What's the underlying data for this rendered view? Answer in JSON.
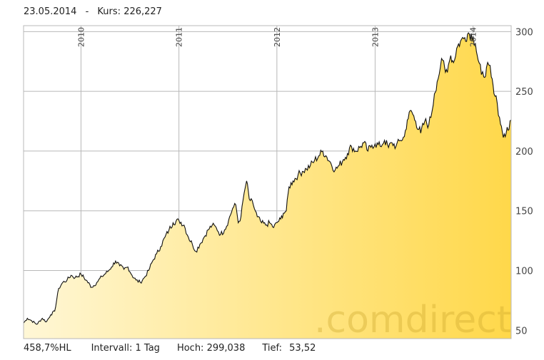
{
  "header": {
    "date": "23.05.2014",
    "separator": "-",
    "kurs_label": "Kurs:",
    "kurs_value": "226,227"
  },
  "footer": {
    "performance": "458,7%HL",
    "interval_label": "Intervall:",
    "interval_value": "1 Tag",
    "high_label": "Hoch:",
    "high_value": "299,038",
    "low_label": "Tief:",
    "low_value": "53,52"
  },
  "watermark": ".comdirect",
  "colors": {
    "fill_start": "#fff7d6",
    "fill_end": "#ffd84a",
    "line": "#111111",
    "grid": "#b8b8b8"
  },
  "chart_data": {
    "type": "area",
    "x_axis": "date",
    "y_axis_position": "right",
    "grid": true,
    "xlim": [
      "2009-06-01",
      "2014-05-23"
    ],
    "ylim": [
      43,
      305
    ],
    "y_ticks": [
      50,
      100,
      150,
      200,
      250,
      300
    ],
    "x_tick_labels": [
      {
        "label": "2010",
        "date": "2010-01-01"
      },
      {
        "label": "2011",
        "date": "2011-01-01"
      },
      {
        "label": "2012",
        "date": "2012-01-01"
      },
      {
        "label": "2013",
        "date": "2013-01-01"
      },
      {
        "label": "2014",
        "date": "2014-01-01"
      }
    ],
    "points": [
      [
        "2009-06-01",
        56
      ],
      [
        "2009-06-15",
        60
      ],
      [
        "2009-07-01",
        58
      ],
      [
        "2009-07-20",
        55
      ],
      [
        "2009-08-10",
        60
      ],
      [
        "2009-08-25",
        57
      ],
      [
        "2009-09-10",
        63
      ],
      [
        "2009-09-25",
        66
      ],
      [
        "2009-10-10",
        85
      ],
      [
        "2009-10-25",
        90
      ],
      [
        "2009-11-10",
        92
      ],
      [
        "2009-11-25",
        96
      ],
      [
        "2009-12-10",
        94
      ],
      [
        "2010-01-01",
        97
      ],
      [
        "2010-01-20",
        92
      ],
      [
        "2010-02-10",
        86
      ],
      [
        "2010-03-01",
        90
      ],
      [
        "2010-03-20",
        95
      ],
      [
        "2010-04-10",
        99
      ],
      [
        "2010-04-25",
        103
      ],
      [
        "2010-05-10",
        108
      ],
      [
        "2010-05-25",
        104
      ],
      [
        "2010-06-10",
        101
      ],
      [
        "2010-06-25",
        103
      ],
      [
        "2010-07-10",
        96
      ],
      [
        "2010-07-25",
        92
      ],
      [
        "2010-08-10",
        90
      ],
      [
        "2010-08-25",
        94
      ],
      [
        "2010-09-10",
        100
      ],
      [
        "2010-09-25",
        108
      ],
      [
        "2010-10-10",
        114
      ],
      [
        "2010-10-25",
        120
      ],
      [
        "2010-11-10",
        128
      ],
      [
        "2010-11-25",
        134
      ],
      [
        "2010-12-10",
        140
      ],
      [
        "2011-01-01",
        142
      ],
      [
        "2011-01-20",
        138
      ],
      [
        "2011-02-05",
        128
      ],
      [
        "2011-02-20",
        122
      ],
      [
        "2011-03-05",
        116
      ],
      [
        "2011-03-20",
        122
      ],
      [
        "2011-04-05",
        128
      ],
      [
        "2011-04-20",
        134
      ],
      [
        "2011-05-05",
        138
      ],
      [
        "2011-05-20",
        136
      ],
      [
        "2011-06-05",
        130
      ],
      [
        "2011-06-20",
        134
      ],
      [
        "2011-07-05",
        142
      ],
      [
        "2011-07-20",
        152
      ],
      [
        "2011-08-01",
        155
      ],
      [
        "2011-08-10",
        140
      ],
      [
        "2011-08-20",
        145
      ],
      [
        "2011-09-01",
        165
      ],
      [
        "2011-09-10",
        175
      ],
      [
        "2011-09-20",
        160
      ],
      [
        "2011-10-05",
        155
      ],
      [
        "2011-10-20",
        145
      ],
      [
        "2011-11-05",
        140
      ],
      [
        "2011-11-20",
        138
      ],
      [
        "2011-12-05",
        140
      ],
      [
        "2011-12-20",
        136
      ],
      [
        "2012-01-01",
        140
      ],
      [
        "2012-01-15",
        143
      ],
      [
        "2012-01-25",
        148
      ],
      [
        "2012-02-05",
        150
      ],
      [
        "2012-02-15",
        170
      ],
      [
        "2012-03-01",
        175
      ],
      [
        "2012-03-20",
        180
      ],
      [
        "2012-04-05",
        183
      ],
      [
        "2012-04-20",
        185
      ],
      [
        "2012-05-05",
        188
      ],
      [
        "2012-05-20",
        192
      ],
      [
        "2012-06-05",
        196
      ],
      [
        "2012-06-20",
        200
      ],
      [
        "2012-07-05",
        195
      ],
      [
        "2012-07-20",
        190
      ],
      [
        "2012-08-05",
        184
      ],
      [
        "2012-08-20",
        188
      ],
      [
        "2012-09-05",
        193
      ],
      [
        "2012-09-20",
        198
      ],
      [
        "2012-10-05",
        204
      ],
      [
        "2012-10-20",
        200
      ],
      [
        "2012-11-05",
        203
      ],
      [
        "2012-11-20",
        207
      ],
      [
        "2012-12-05",
        200
      ],
      [
        "2012-12-20",
        205
      ],
      [
        "2013-01-01",
        206
      ],
      [
        "2013-01-20",
        204
      ],
      [
        "2013-02-05",
        209
      ],
      [
        "2013-02-20",
        203
      ],
      [
        "2013-03-05",
        207
      ],
      [
        "2013-03-20",
        204
      ],
      [
        "2013-04-05",
        209
      ],
      [
        "2013-04-20",
        212
      ],
      [
        "2013-05-01",
        226
      ],
      [
        "2013-05-15",
        234
      ],
      [
        "2013-06-01",
        225
      ],
      [
        "2013-06-20",
        215
      ],
      [
        "2013-07-05",
        225
      ],
      [
        "2013-07-20",
        222
      ],
      [
        "2013-08-01",
        233
      ],
      [
        "2013-08-10",
        248
      ],
      [
        "2013-08-20",
        258
      ],
      [
        "2013-09-01",
        270
      ],
      [
        "2013-09-10",
        276
      ],
      [
        "2013-09-20",
        266
      ],
      [
        "2013-10-01",
        272
      ],
      [
        "2013-10-10",
        280
      ],
      [
        "2013-10-20",
        274
      ],
      [
        "2013-11-01",
        286
      ],
      [
        "2013-11-15",
        292
      ],
      [
        "2013-12-01",
        295
      ],
      [
        "2013-12-15",
        299
      ],
      [
        "2014-01-01",
        296
      ],
      [
        "2014-01-10",
        290
      ],
      [
        "2014-01-20",
        276
      ],
      [
        "2014-02-01",
        264
      ],
      [
        "2014-02-10",
        262
      ],
      [
        "2014-02-20",
        270
      ],
      [
        "2014-03-01",
        272
      ],
      [
        "2014-03-10",
        262
      ],
      [
        "2014-03-20",
        248
      ],
      [
        "2014-04-01",
        240
      ],
      [
        "2014-04-10",
        228
      ],
      [
        "2014-04-20",
        216
      ],
      [
        "2014-05-01",
        212
      ],
      [
        "2014-05-08",
        220
      ],
      [
        "2014-05-15",
        218
      ],
      [
        "2014-05-23",
        226
      ]
    ]
  }
}
